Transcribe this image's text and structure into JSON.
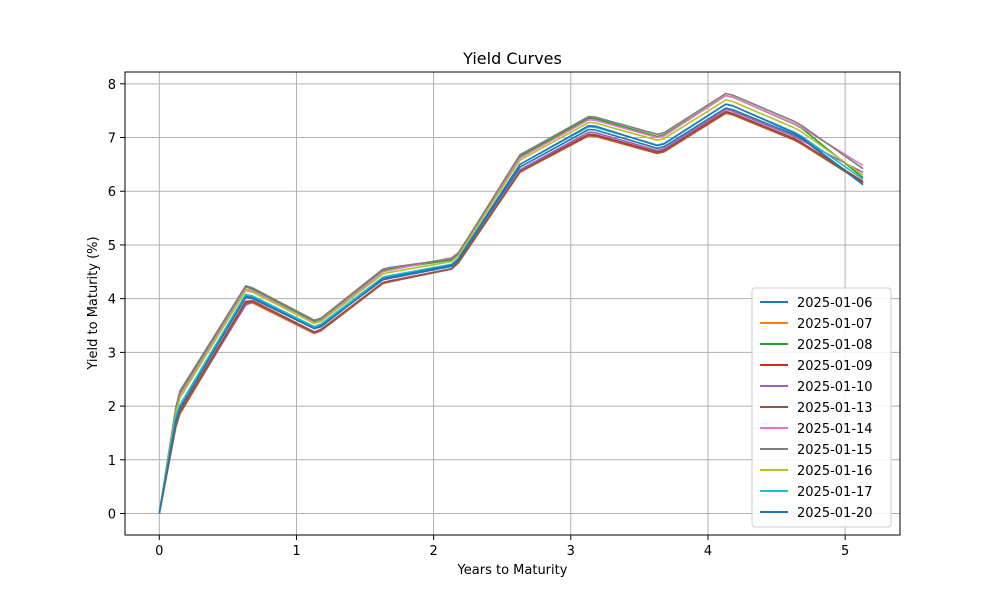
{
  "chart_data": {
    "type": "line",
    "title": "Yield Curves",
    "xlabel": "Years to Maturity",
    "ylabel": "Yield to Maturity (%)",
    "xlim": [
      -0.25,
      5.4
    ],
    "ylim": [
      -0.4,
      8.22
    ],
    "xticks": [
      0,
      1,
      2,
      3,
      4,
      5
    ],
    "yticks": [
      0,
      1,
      2,
      3,
      4,
      5,
      6,
      7,
      8
    ],
    "grid": true,
    "legend_position": "lower-right",
    "series": [
      {
        "name": "2025-01-06",
        "color": "#1f77b4",
        "x": [
          0,
          0.12,
          0.15,
          0.63,
          0.68,
          1.13,
          1.18,
          1.63,
          1.68,
          2.13,
          2.18,
          2.63,
          2.68,
          3.13,
          3.18,
          3.63,
          3.68,
          4.13,
          4.18,
          4.63,
          4.68,
          5.13
        ],
        "y": [
          0,
          1.75,
          1.95,
          4.05,
          4.02,
          3.45,
          3.5,
          4.35,
          4.38,
          4.6,
          4.72,
          6.45,
          6.52,
          7.15,
          7.14,
          6.8,
          6.83,
          7.55,
          7.52,
          7.05,
          6.98,
          6.15
        ]
      },
      {
        "name": "2025-01-07",
        "color": "#ff7f0e",
        "x": [
          0,
          0.12,
          0.15,
          0.63,
          0.68,
          1.13,
          1.18,
          1.63,
          1.68,
          2.13,
          2.18,
          2.63,
          2.68,
          3.13,
          3.18,
          3.63,
          3.68,
          4.13,
          4.18,
          4.63,
          4.68,
          5.13
        ],
        "y": [
          0,
          1.6,
          1.85,
          3.9,
          3.92,
          3.35,
          3.4,
          4.28,
          4.31,
          4.55,
          4.66,
          6.35,
          6.42,
          7.03,
          7.02,
          6.7,
          6.73,
          7.45,
          7.42,
          6.95,
          6.88,
          6.15
        ]
      },
      {
        "name": "2025-01-08",
        "color": "#2ca02c",
        "x": [
          0,
          0.12,
          0.15,
          0.63,
          0.68,
          1.13,
          1.18,
          1.63,
          1.68,
          2.13,
          2.18,
          2.63,
          2.68,
          3.13,
          3.18,
          3.63,
          3.68,
          4.13,
          4.18,
          4.63,
          4.68,
          5.13
        ],
        "y": [
          0,
          1.95,
          2.25,
          4.22,
          4.18,
          3.58,
          3.62,
          4.52,
          4.55,
          4.72,
          4.82,
          6.65,
          6.72,
          7.36,
          7.35,
          7.02,
          7.05,
          7.78,
          7.75,
          7.25,
          7.18,
          6.25
        ]
      },
      {
        "name": "2025-01-09",
        "color": "#d62728",
        "x": [
          0,
          0.12,
          0.15,
          0.63,
          0.68,
          1.13,
          1.18,
          1.63,
          1.68,
          2.13,
          2.18,
          2.63,
          2.68,
          3.13,
          3.18,
          3.63,
          3.68,
          4.13,
          4.18,
          4.63,
          4.68,
          5.13
        ],
        "y": [
          0,
          1.65,
          1.9,
          3.95,
          3.96,
          3.38,
          3.43,
          4.3,
          4.33,
          4.56,
          4.68,
          6.38,
          6.45,
          7.06,
          7.05,
          6.73,
          6.76,
          7.48,
          7.45,
          6.98,
          6.91,
          6.18
        ]
      },
      {
        "name": "2025-01-10",
        "color": "#9467bd",
        "x": [
          0,
          0.12,
          0.15,
          0.63,
          0.68,
          1.13,
          1.18,
          1.63,
          1.68,
          2.13,
          2.18,
          2.63,
          2.68,
          3.13,
          3.18,
          3.63,
          3.68,
          4.13,
          4.18,
          4.63,
          4.68,
          5.13
        ],
        "y": [
          0,
          1.62,
          1.88,
          3.88,
          3.94,
          3.36,
          3.41,
          4.29,
          4.32,
          4.56,
          4.67,
          6.4,
          6.47,
          7.1,
          7.09,
          6.76,
          6.79,
          7.52,
          7.49,
          7.02,
          6.95,
          6.35
        ]
      },
      {
        "name": "2025-01-13",
        "color": "#8c564b",
        "x": [
          0,
          0.12,
          0.15,
          0.63,
          0.68,
          1.13,
          1.18,
          1.63,
          1.68,
          2.13,
          2.18,
          2.63,
          2.68,
          3.13,
          3.18,
          3.63,
          3.68,
          4.13,
          4.18,
          4.63,
          4.68,
          5.13
        ],
        "y": [
          0,
          1.63,
          1.87,
          3.92,
          3.94,
          3.37,
          3.42,
          4.29,
          4.32,
          4.55,
          4.67,
          6.36,
          6.43,
          7.04,
          7.03,
          6.71,
          6.74,
          7.46,
          7.43,
          6.96,
          6.89,
          6.16
        ]
      },
      {
        "name": "2025-01-14",
        "color": "#e377c2",
        "x": [
          0,
          0.12,
          0.15,
          0.63,
          0.68,
          1.13,
          1.18,
          1.63,
          1.68,
          2.13,
          2.18,
          2.63,
          2.68,
          3.13,
          3.18,
          3.63,
          3.68,
          4.13,
          4.18,
          4.63,
          4.68,
          5.13
        ],
        "y": [
          0,
          1.9,
          2.2,
          4.18,
          4.15,
          3.55,
          3.6,
          4.5,
          4.53,
          4.76,
          4.86,
          6.62,
          6.69,
          7.33,
          7.32,
          7.0,
          7.03,
          7.78,
          7.75,
          7.26,
          7.19,
          6.48
        ]
      },
      {
        "name": "2025-01-15",
        "color": "#7f7f7f",
        "x": [
          0,
          0.12,
          0.15,
          0.63,
          0.68,
          1.13,
          1.18,
          1.63,
          1.68,
          2.13,
          2.18,
          2.63,
          2.68,
          3.13,
          3.18,
          3.63,
          3.68,
          4.13,
          4.18,
          4.63,
          4.68,
          5.13
        ],
        "y": [
          0,
          1.97,
          2.28,
          4.24,
          4.2,
          3.6,
          3.64,
          4.55,
          4.58,
          4.74,
          4.84,
          6.68,
          6.75,
          7.39,
          7.38,
          7.06,
          7.09,
          7.82,
          7.79,
          7.3,
          7.23,
          6.42
        ]
      },
      {
        "name": "2025-01-16",
        "color": "#bcbd22",
        "x": [
          0,
          0.12,
          0.15,
          0.63,
          0.68,
          1.13,
          1.18,
          1.63,
          1.68,
          2.13,
          2.18,
          2.63,
          2.68,
          3.13,
          3.18,
          3.63,
          3.68,
          4.13,
          4.18,
          4.63,
          4.68,
          5.13
        ],
        "y": [
          0,
          1.88,
          2.15,
          4.15,
          4.12,
          3.54,
          3.58,
          4.46,
          4.49,
          4.69,
          4.8,
          6.58,
          6.65,
          7.28,
          7.27,
          6.95,
          6.98,
          7.7,
          7.67,
          7.18,
          7.11,
          6.3
        ]
      },
      {
        "name": "2025-01-17",
        "color": "#17becf",
        "x": [
          0,
          0.12,
          0.15,
          0.63,
          0.68,
          1.13,
          1.18,
          1.63,
          1.68,
          2.13,
          2.18,
          2.63,
          2.68,
          3.13,
          3.18,
          3.63,
          3.68,
          4.13,
          4.18,
          4.63,
          4.68,
          5.13
        ],
        "y": [
          0,
          1.8,
          2.02,
          4.08,
          4.05,
          3.48,
          3.53,
          4.4,
          4.43,
          4.64,
          4.75,
          6.5,
          6.57,
          7.2,
          7.19,
          6.86,
          6.89,
          7.62,
          7.59,
          7.1,
          7.03,
          6.22
        ]
      },
      {
        "name": "2025-01-20",
        "color": "#1f77b4",
        "x": [
          0,
          0.12,
          0.15,
          0.63,
          0.68,
          1.13,
          1.18,
          1.63,
          1.68,
          2.13,
          2.18,
          2.63,
          2.68,
          3.13,
          3.18,
          3.63,
          3.68,
          4.13,
          4.18,
          4.63,
          4.68,
          5.13
        ],
        "y": [
          0,
          1.72,
          1.96,
          4.02,
          4.0,
          3.44,
          3.48,
          4.37,
          4.4,
          4.62,
          4.73,
          6.5,
          6.57,
          7.22,
          7.21,
          6.85,
          6.88,
          7.62,
          7.59,
          7.08,
          7.01,
          6.12
        ]
      }
    ]
  }
}
